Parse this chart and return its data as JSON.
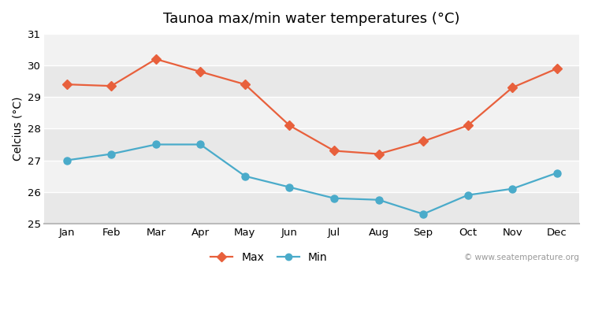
{
  "title": "Taunoa max/min water temperatures (°C)",
  "ylabel": "Celcius (°C)",
  "months": [
    "Jan",
    "Feb",
    "Mar",
    "Apr",
    "May",
    "Jun",
    "Jul",
    "Aug",
    "Sep",
    "Oct",
    "Nov",
    "Dec"
  ],
  "max_temps": [
    29.4,
    29.35,
    30.2,
    29.8,
    29.4,
    28.1,
    27.3,
    27.2,
    27.6,
    28.1,
    29.3,
    29.9
  ],
  "min_temps": [
    27.0,
    27.2,
    27.5,
    27.5,
    26.5,
    26.15,
    25.8,
    25.75,
    25.3,
    25.9,
    26.1,
    26.6
  ],
  "max_color": "#e8603c",
  "min_color": "#4aabca",
  "fig_bg_color": "#ffffff",
  "plot_bg_color": "#f2f2f2",
  "band_color_light": "#f2f2f2",
  "band_color_dark": "#e8e8e8",
  "grid_color": "#ffffff",
  "spine_color": "#bbbbbb",
  "ylim": [
    25,
    31
  ],
  "yticks": [
    25,
    26,
    27,
    28,
    29,
    30,
    31
  ],
  "watermark": "© www.seatemperature.org",
  "title_fontsize": 13,
  "label_fontsize": 10,
  "tick_fontsize": 9.5
}
